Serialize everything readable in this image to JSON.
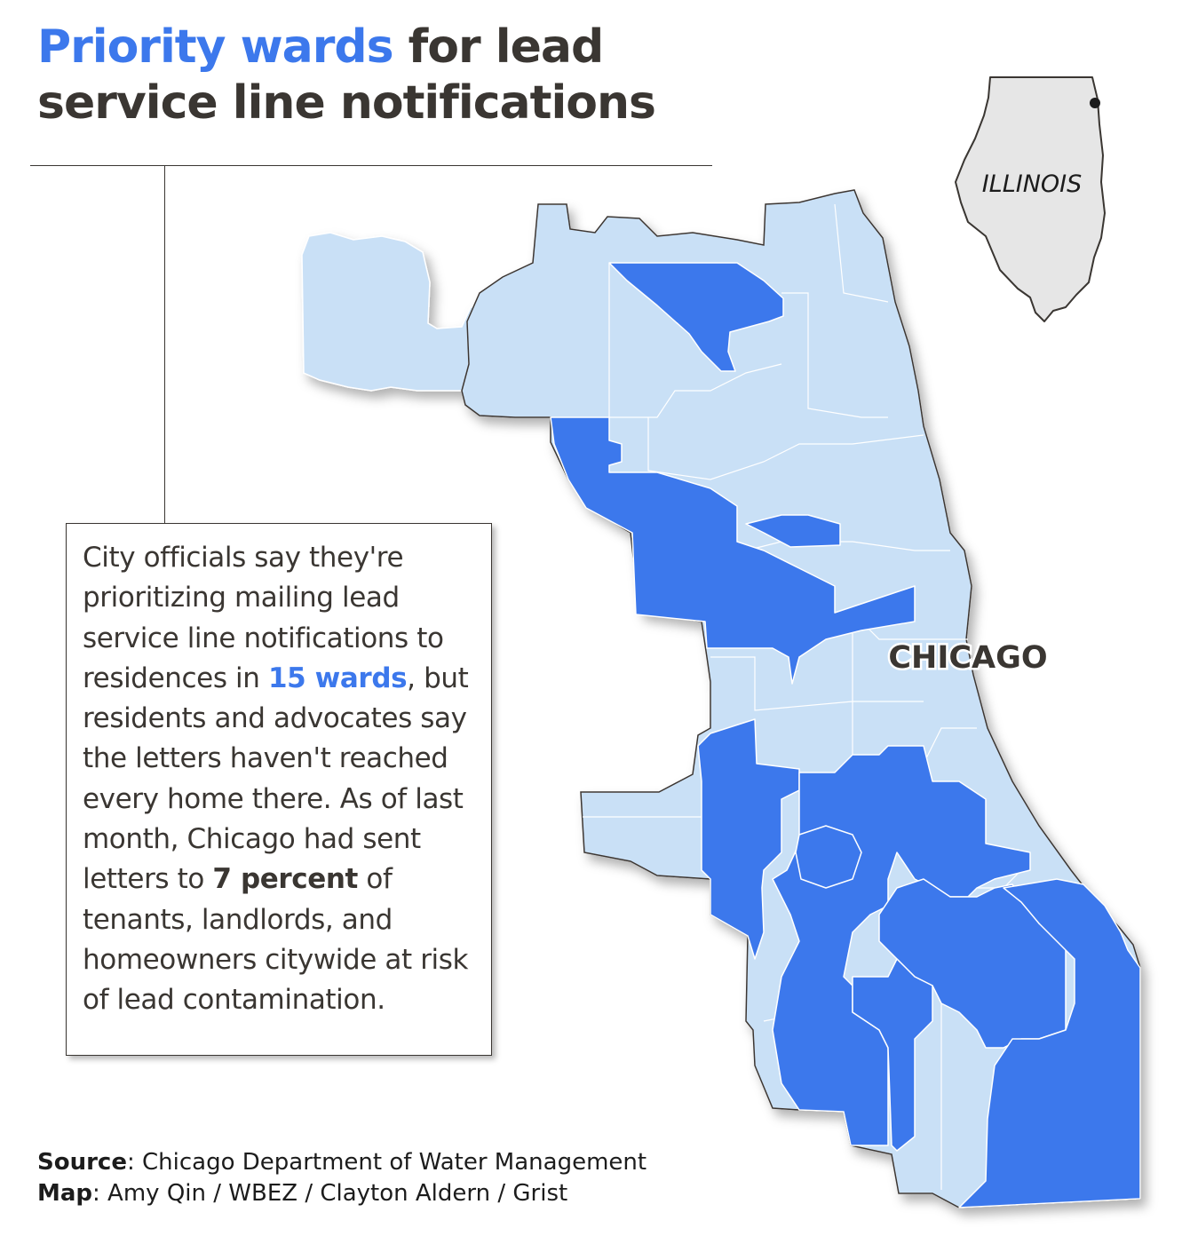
{
  "header": {
    "title_highlight": "Priority wards",
    "title_rest_line1": " for lead",
    "title_line2": "service line notifications"
  },
  "map_labels": {
    "city": "CHICAGO",
    "state": "ILLINOIS"
  },
  "callout": {
    "part1": "City officials say they're prioritizing mailing lead service line notifications to residences in ",
    "highlight_wards": "15 wards",
    "part2": ", but residents and advocates say the letters haven't reached every home there. As of last month, Chicago had sent letters to ",
    "highlight_percent": "7 percent",
    "part3": " of tenants, landlords, and homeowners citywide at risk of lead contamination."
  },
  "credits": {
    "source_label": "Source",
    "source_text": ": Chicago Department of Water Management",
    "map_label": "Map",
    "map_text": ": Amy Qin / WBEZ / Clayton Aldern / Grist"
  },
  "colors": {
    "priority_ward": "#3c78ec",
    "other_ward": "#c9e0f6",
    "ward_border": "#ffffff",
    "text": "#3a3632",
    "illinois_fill": "#e6e6e6"
  },
  "legend_semantics": {
    "priority_ward_count": 15
  }
}
